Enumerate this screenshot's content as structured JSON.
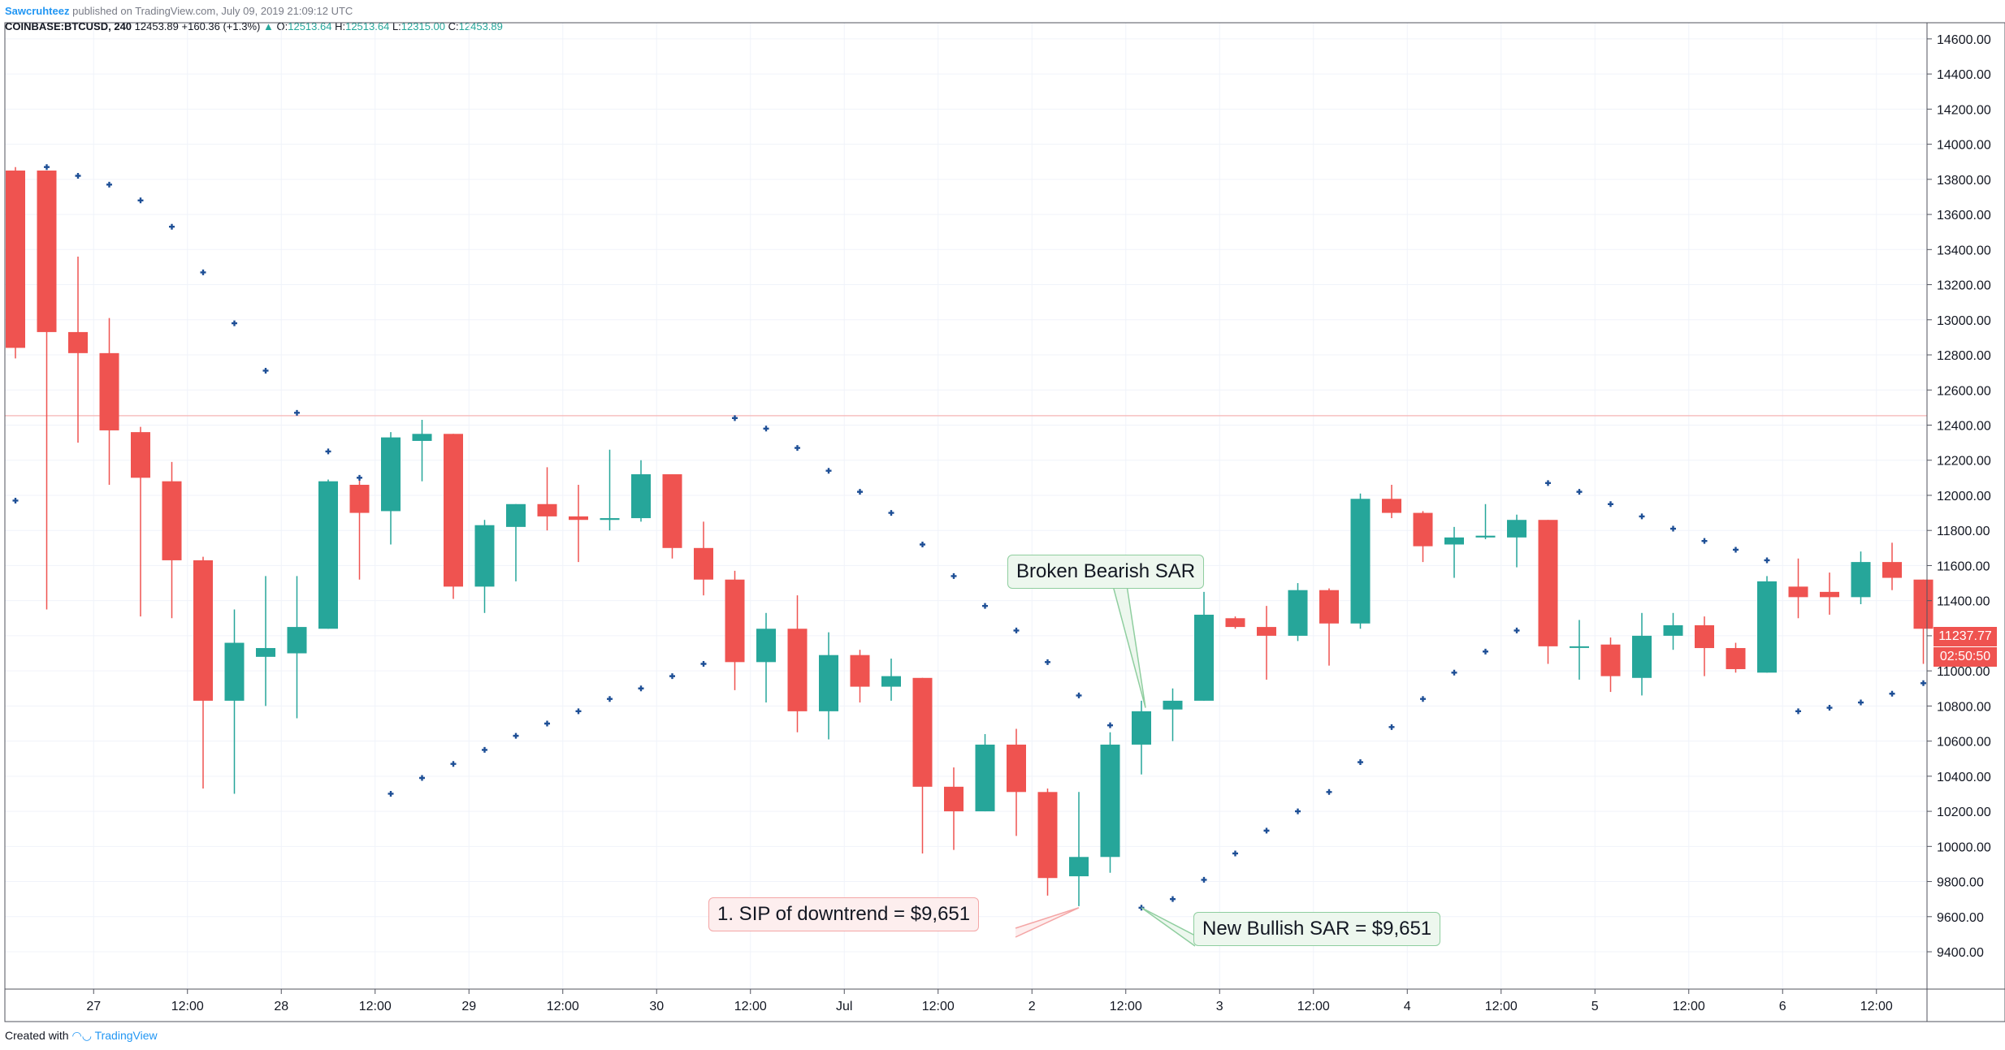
{
  "header": {
    "author": "Sawcruhteez",
    "published": "published on TradingView.com, July 09, 2019 21:09:12 UTC",
    "symbol": "COINBASE:BTCUSD, 240",
    "last": "12453.89",
    "change": "+160.36 (+1.3%)",
    "o_label": "O:",
    "o_value": "12513.64",
    "h_label": "H:",
    "h_value": "12513.64",
    "l_label": "L:",
    "l_value": "12315.00",
    "c_label": "C:",
    "c_value": "12453.89"
  },
  "footer": {
    "created_with": "Created with",
    "brand": "TradingView"
  },
  "price_tag": {
    "price": "11237.77",
    "countdown": "02:50:50"
  },
  "annotations": {
    "broken_bearish": "Broken Bearish SAR",
    "sip": "1. SIP of downtrend = $9,651",
    "new_bullish": "New Bullish SAR = $9,651"
  },
  "colors": {
    "up": "#26a69a",
    "down": "#ef5350",
    "sar": "#1e4f96",
    "grid": "#f0f3fa",
    "hline": "#f7c0c0"
  },
  "chart_data": {
    "type": "candlestick",
    "symbol": "COINBASE:BTCUSD",
    "interval": "240",
    "ylim": [
      9200,
      14800
    ],
    "y_ticks": [
      9400,
      9600,
      9800,
      10000,
      10200,
      10400,
      10600,
      10800,
      11000,
      11200,
      11400,
      11600,
      11800,
      12000,
      12200,
      12400,
      12600,
      12800,
      13000,
      13200,
      13400,
      13600,
      13800,
      14000,
      14200,
      14400,
      14600
    ],
    "x_ticks": [
      {
        "i": 2.5,
        "label": "27"
      },
      {
        "i": 5.5,
        "label": "12:00"
      },
      {
        "i": 8.5,
        "label": "28"
      },
      {
        "i": 11.5,
        "label": "12:00"
      },
      {
        "i": 14.5,
        "label": "29"
      },
      {
        "i": 17.5,
        "label": "12:00"
      },
      {
        "i": 20.5,
        "label": "30"
      },
      {
        "i": 23.5,
        "label": "12:00"
      },
      {
        "i": 26.5,
        "label": "Jul"
      },
      {
        "i": 29.5,
        "label": "12:00"
      },
      {
        "i": 32.5,
        "label": "2"
      },
      {
        "i": 35.5,
        "label": "12:00"
      },
      {
        "i": 38.5,
        "label": "3"
      },
      {
        "i": 41.5,
        "label": "12:00"
      },
      {
        "i": 44.5,
        "label": "4"
      },
      {
        "i": 47.5,
        "label": "12:00"
      },
      {
        "i": 50.5,
        "label": "5"
      },
      {
        "i": 53.5,
        "label": "12:00"
      },
      {
        "i": 56.5,
        "label": "6"
      },
      {
        "i": 59.5,
        "label": "12:00"
      }
    ],
    "horizontal_line": 12453.89,
    "candles": [
      [
        13850,
        13870,
        12780,
        12840
      ],
      [
        13850,
        13850,
        11350,
        12930
      ],
      [
        12930,
        13360,
        12300,
        12810
      ],
      [
        12810,
        13010,
        12060,
        12370
      ],
      [
        12360,
        12390,
        11310,
        12100
      ],
      [
        12080,
        12190,
        11300,
        11630
      ],
      [
        11630,
        11650,
        10330,
        10830
      ],
      [
        10830,
        11350,
        10300,
        11160
      ],
      [
        11080,
        11540,
        10800,
        11130
      ],
      [
        11100,
        11540,
        10730,
        11250
      ],
      [
        11240,
        12090,
        11240,
        12080
      ],
      [
        12060,
        12100,
        11520,
        11900
      ],
      [
        11910,
        12360,
        11720,
        12330
      ],
      [
        12310,
        12430,
        12080,
        12350
      ],
      [
        12350,
        12350,
        11410,
        11480
      ],
      [
        11480,
        11860,
        11330,
        11830
      ],
      [
        11820,
        11950,
        11510,
        11950
      ],
      [
        11950,
        12160,
        11800,
        11880
      ],
      [
        11880,
        12060,
        11620,
        11860
      ],
      [
        11860,
        12260,
        11800,
        11870
      ],
      [
        11870,
        12200,
        11850,
        12120
      ],
      [
        12120,
        12120,
        11640,
        11700
      ],
      [
        11700,
        11850,
        11430,
        11520
      ],
      [
        11520,
        11570,
        10890,
        11050
      ],
      [
        11050,
        11330,
        10820,
        11240
      ],
      [
        11240,
        11430,
        10650,
        10770
      ],
      [
        10770,
        11220,
        10610,
        11090
      ],
      [
        11090,
        11120,
        10820,
        10910
      ],
      [
        10910,
        11070,
        10830,
        10970
      ],
      [
        10960,
        10960,
        9960,
        10340
      ],
      [
        10340,
        10450,
        9980,
        10200
      ],
      [
        10200,
        10640,
        10200,
        10580
      ],
      [
        10580,
        10670,
        10060,
        10310
      ],
      [
        10310,
        10330,
        9720,
        9820
      ],
      [
        9830,
        10310,
        9660,
        9940
      ],
      [
        9940,
        10650,
        9850,
        10580
      ],
      [
        10580,
        10830,
        10410,
        10770
      ],
      [
        10780,
        10900,
        10600,
        10830
      ],
      [
        10830,
        11450,
        10830,
        11320
      ],
      [
        11300,
        11310,
        11240,
        11250
      ],
      [
        11250,
        11370,
        10950,
        11200
      ],
      [
        11200,
        11500,
        11170,
        11460
      ],
      [
        11460,
        11470,
        11030,
        11270
      ],
      [
        11270,
        12010,
        11240,
        11980
      ],
      [
        11980,
        12060,
        11870,
        11900
      ],
      [
        11900,
        11910,
        11620,
        11710
      ],
      [
        11720,
        11820,
        11530,
        11760
      ],
      [
        11760,
        11950,
        11750,
        11770
      ],
      [
        11760,
        11890,
        11590,
        11860
      ],
      [
        11860,
        11860,
        11040,
        11140
      ],
      [
        11140,
        11290,
        10950,
        11140
      ],
      [
        11150,
        11190,
        10880,
        10970
      ],
      [
        10960,
        11330,
        10860,
        11200
      ],
      [
        11200,
        11330,
        11120,
        11260
      ],
      [
        11260,
        11310,
        10970,
        11130
      ],
      [
        11130,
        11160,
        10990,
        11010
      ],
      [
        10990,
        11540,
        10990,
        11510
      ],
      [
        11480,
        11640,
        11300,
        11420
      ],
      [
        11450,
        11560,
        11320,
        11420
      ],
      [
        11420,
        11680,
        11380,
        11620
      ],
      [
        11620,
        11730,
        11460,
        11530
      ],
      [
        11520,
        11520,
        11040,
        11240
      ]
    ],
    "sar": [
      [
        0,
        11970
      ],
      [
        1,
        13870
      ],
      [
        2,
        13820
      ],
      [
        3,
        13770
      ],
      [
        4,
        13680
      ],
      [
        5,
        13530
      ],
      [
        6,
        13270
      ],
      [
        7,
        12980
      ],
      [
        8,
        12710
      ],
      [
        9,
        12470
      ],
      [
        10,
        12250
      ],
      [
        11,
        12100
      ],
      [
        12,
        10300
      ],
      [
        13,
        10390
      ],
      [
        14,
        10470
      ],
      [
        15,
        10550
      ],
      [
        16,
        10630
      ],
      [
        17,
        10700
      ],
      [
        18,
        10770
      ],
      [
        19,
        10840
      ],
      [
        20,
        10900
      ],
      [
        21,
        10970
      ],
      [
        22,
        11040
      ],
      [
        23,
        12440
      ],
      [
        24,
        12380
      ],
      [
        25,
        12270
      ],
      [
        26,
        12140
      ],
      [
        27,
        12020
      ],
      [
        28,
        11900
      ],
      [
        29,
        11720
      ],
      [
        30,
        11540
      ],
      [
        31,
        11370
      ],
      [
        32,
        11230
      ],
      [
        33,
        11050
      ],
      [
        34,
        10860
      ],
      [
        35,
        10690
      ],
      [
        36,
        9651
      ],
      [
        37,
        9700
      ],
      [
        38,
        9810
      ],
      [
        39,
        9960
      ],
      [
        40,
        10090
      ],
      [
        41,
        10200
      ],
      [
        42,
        10310
      ],
      [
        43,
        10480
      ],
      [
        44,
        10680
      ],
      [
        45,
        10840
      ],
      [
        46,
        10990
      ],
      [
        47,
        11110
      ],
      [
        48,
        11230
      ],
      [
        49,
        12070
      ],
      [
        50,
        12020
      ],
      [
        51,
        11950
      ],
      [
        52,
        11880
      ],
      [
        53,
        11810
      ],
      [
        54,
        11740
      ],
      [
        55,
        11690
      ],
      [
        56,
        11630
      ],
      [
        57,
        10770
      ],
      [
        58,
        10790
      ],
      [
        59,
        10820
      ],
      [
        60,
        10870
      ],
      [
        61,
        10930
      ]
    ]
  }
}
